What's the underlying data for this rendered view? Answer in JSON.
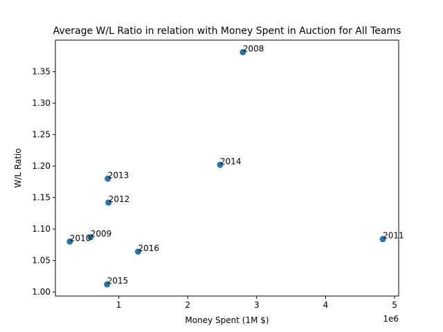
{
  "chart_data": {
    "type": "scatter",
    "title": "Average W/L Ratio in relation with Money Spent in Auction for All Teams",
    "xlabel": "Money Spent (1M $)",
    "ylabel": "W/L Ratio",
    "x_offset_text": "1e6",
    "xlim": [
      80000,
      5060000
    ],
    "ylim": [
      0.9935,
      1.4002
    ],
    "xticks": [
      {
        "value": 1000000,
        "label": "1"
      },
      {
        "value": 2000000,
        "label": "2"
      },
      {
        "value": 3000000,
        "label": "3"
      },
      {
        "value": 4000000,
        "label": "4"
      },
      {
        "value": 5000000,
        "label": "5"
      }
    ],
    "yticks": [
      {
        "value": 1.0,
        "label": "1.00"
      },
      {
        "value": 1.05,
        "label": "1.05"
      },
      {
        "value": 1.1,
        "label": "1.10"
      },
      {
        "value": 1.15,
        "label": "1.15"
      },
      {
        "value": 1.2,
        "label": "1.20"
      },
      {
        "value": 1.25,
        "label": "1.25"
      },
      {
        "value": 1.3,
        "label": "1.30"
      },
      {
        "value": 1.35,
        "label": "1.35"
      }
    ],
    "grid": false,
    "legend": "none",
    "marker_color": "#1f77b4",
    "points": [
      {
        "label": "2008",
        "x": 2800000,
        "y": 1.381
      },
      {
        "label": "2009",
        "x": 590000,
        "y": 1.087
      },
      {
        "label": "2010",
        "x": 290000,
        "y": 1.08
      },
      {
        "label": "2011",
        "x": 4830000,
        "y": 1.084
      },
      {
        "label": "2012",
        "x": 850000,
        "y": 1.142
      },
      {
        "label": "2013",
        "x": 840000,
        "y": 1.18
      },
      {
        "label": "2014",
        "x": 2470000,
        "y": 1.202
      },
      {
        "label": "2015",
        "x": 830000,
        "y": 1.012
      },
      {
        "label": "2016",
        "x": 1280000,
        "y": 1.064
      }
    ]
  }
}
